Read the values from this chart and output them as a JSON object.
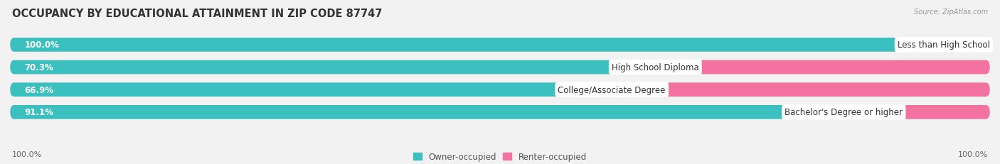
{
  "title": "OCCUPANCY BY EDUCATIONAL ATTAINMENT IN ZIP CODE 87747",
  "source": "Source: ZipAtlas.com",
  "categories": [
    "Less than High School",
    "High School Diploma",
    "College/Associate Degree",
    "Bachelor's Degree or higher"
  ],
  "owner_pct": [
    100.0,
    70.3,
    66.9,
    91.1
  ],
  "renter_pct": [
    0.0,
    29.7,
    33.1,
    8.9
  ],
  "owner_color": "#3BBFBF",
  "renter_color": "#F472A0",
  "bar_bg_color": "#E0E0E0",
  "background_color": "#F2F2F2",
  "title_fontsize": 10.5,
  "label_fontsize": 8.5,
  "pct_fontsize": 8.5,
  "axis_label_fontsize": 8,
  "legend_fontsize": 8.5,
  "bar_height": 0.62,
  "n_rows": 4
}
